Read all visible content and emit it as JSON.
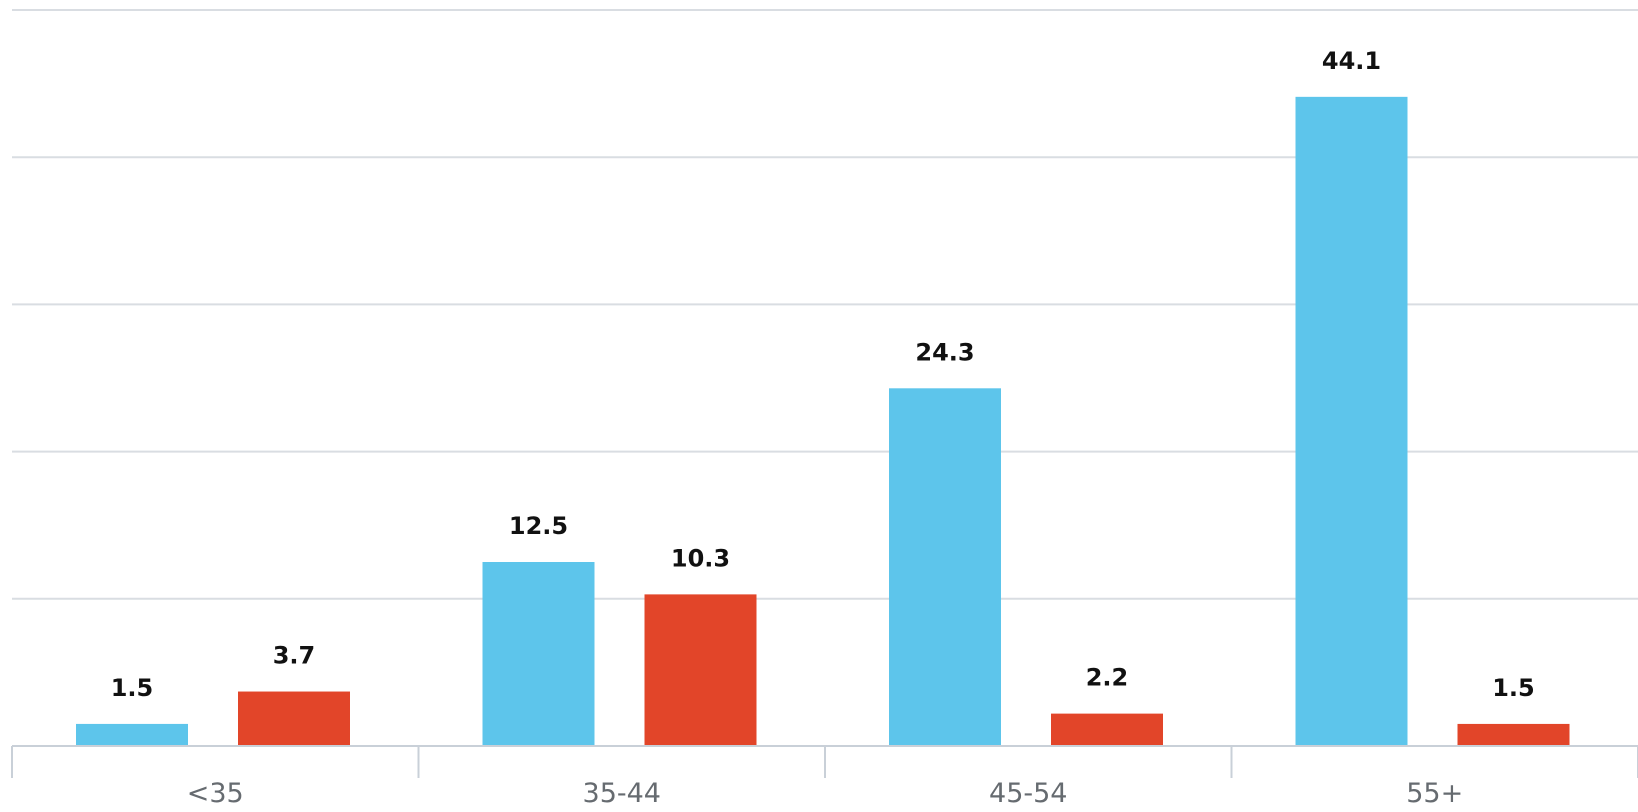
{
  "chart_data": {
    "type": "bar",
    "categories": [
      "<35",
      "35-44",
      "45-54",
      "55+"
    ],
    "series": [
      {
        "color": "#5dc5eb",
        "values": [
          1.5,
          12.5,
          24.3,
          44.1
        ],
        "labels": [
          "1.5",
          "12.5",
          "24.3",
          "44.1"
        ]
      },
      {
        "color": "#e24529",
        "values": [
          3.7,
          10.3,
          2.2,
          1.5
        ],
        "labels": [
          "3.7",
          "10.3",
          "2.2",
          "1.5"
        ]
      }
    ],
    "title": "",
    "xlabel": "",
    "ylabel": "",
    "ylim": [
      0,
      50
    ],
    "grid": true,
    "legend": "none"
  }
}
